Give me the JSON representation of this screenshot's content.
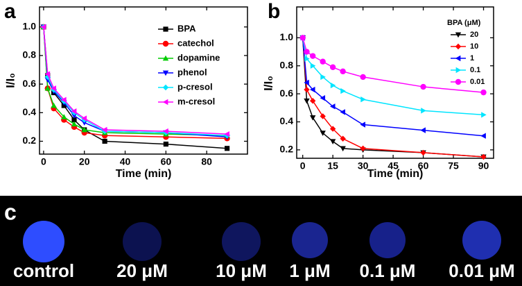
{
  "chart_data": [
    {
      "type": "line",
      "panel_label": "a",
      "x_label": "Time (min)",
      "y_label": "I/I₀",
      "x": [
        0,
        2,
        5,
        10,
        15,
        20,
        30,
        60,
        90
      ],
      "xlim": [
        -2,
        100
      ],
      "xticks": [
        0,
        20,
        40,
        60,
        80
      ],
      "ylim": [
        0.11,
        1.14
      ],
      "yticks": [
        0.2,
        0.4,
        0.6,
        0.8,
        {
          "value": 1,
          "label": "1.0"
        }
      ],
      "series": [
        {
          "name": "BPA",
          "color": "#000000",
          "marker": "square",
          "values": [
            1.0,
            0.66,
            0.54,
            0.45,
            0.35,
            0.28,
            0.2,
            0.18,
            0.15
          ]
        },
        {
          "name": "catechol",
          "color": "#ff0000",
          "marker": "circle",
          "values": [
            1.0,
            0.57,
            0.43,
            0.35,
            0.3,
            0.26,
            0.24,
            0.23,
            0.22
          ]
        },
        {
          "name": "dopamine",
          "color": "#00cc00",
          "marker": "triangle-up",
          "values": [
            1.0,
            0.57,
            0.45,
            0.37,
            0.32,
            0.28,
            0.26,
            0.25,
            0.24
          ]
        },
        {
          "name": "phenol",
          "color": "#0000ff",
          "marker": "triangle-down",
          "values": [
            1.0,
            0.63,
            0.55,
            0.47,
            0.38,
            0.33,
            0.27,
            0.26,
            0.23
          ]
        },
        {
          "name": "p-cresol",
          "color": "#00e5ff",
          "marker": "diamond",
          "values": [
            1.0,
            0.65,
            0.56,
            0.48,
            0.4,
            0.35,
            0.27,
            0.26,
            0.24
          ]
        },
        {
          "name": "m-cresol",
          "color": "#ff00ff",
          "marker": "triangle-left",
          "values": [
            1.0,
            0.67,
            0.57,
            0.49,
            0.41,
            0.36,
            0.28,
            0.27,
            0.25
          ]
        }
      ]
    },
    {
      "type": "line",
      "panel_label": "b",
      "x_label": "Time (min)",
      "y_label": "I/I₀",
      "legend_title": "BPA (μM)",
      "x": [
        0,
        2,
        5,
        10,
        15,
        20,
        30,
        60,
        90
      ],
      "xlim": [
        -3,
        95
      ],
      "xticks": [
        0,
        15,
        30,
        45,
        60,
        75,
        90
      ],
      "ylim": [
        0.14,
        1.22
      ],
      "yticks": [
        0.2,
        0.4,
        0.6,
        0.8,
        {
          "value": 1,
          "label": "1.0"
        }
      ],
      "series": [
        {
          "name": "20",
          "color": "#000000",
          "marker": "triangle-down",
          "values": [
            1.0,
            0.55,
            0.43,
            0.32,
            0.26,
            0.21,
            0.2,
            0.18,
            0.15
          ]
        },
        {
          "name": "10",
          "color": "#ff0000",
          "marker": "diamond",
          "values": [
            1.0,
            0.63,
            0.55,
            0.44,
            0.35,
            0.28,
            0.21,
            0.18,
            0.15
          ]
        },
        {
          "name": "1",
          "color": "#0000ff",
          "marker": "triangle-left",
          "values": [
            1.0,
            0.68,
            0.63,
            0.57,
            0.51,
            0.47,
            0.38,
            0.34,
            0.3
          ]
        },
        {
          "name": "0.1",
          "color": "#00e5ff",
          "marker": "triangle-right",
          "values": [
            1.0,
            0.85,
            0.8,
            0.72,
            0.66,
            0.62,
            0.56,
            0.48,
            0.45
          ]
        },
        {
          "name": "0.01",
          "color": "#ff00ff",
          "marker": "circle",
          "values": [
            1.0,
            0.9,
            0.87,
            0.83,
            0.79,
            0.76,
            0.72,
            0.65,
            0.61
          ]
        }
      ]
    }
  ],
  "panel_c": {
    "label": "c",
    "captions": [
      "control",
      "20 μM",
      "10 μM",
      "1 μM",
      "0.1 μM",
      "0.01 μM"
    ]
  }
}
